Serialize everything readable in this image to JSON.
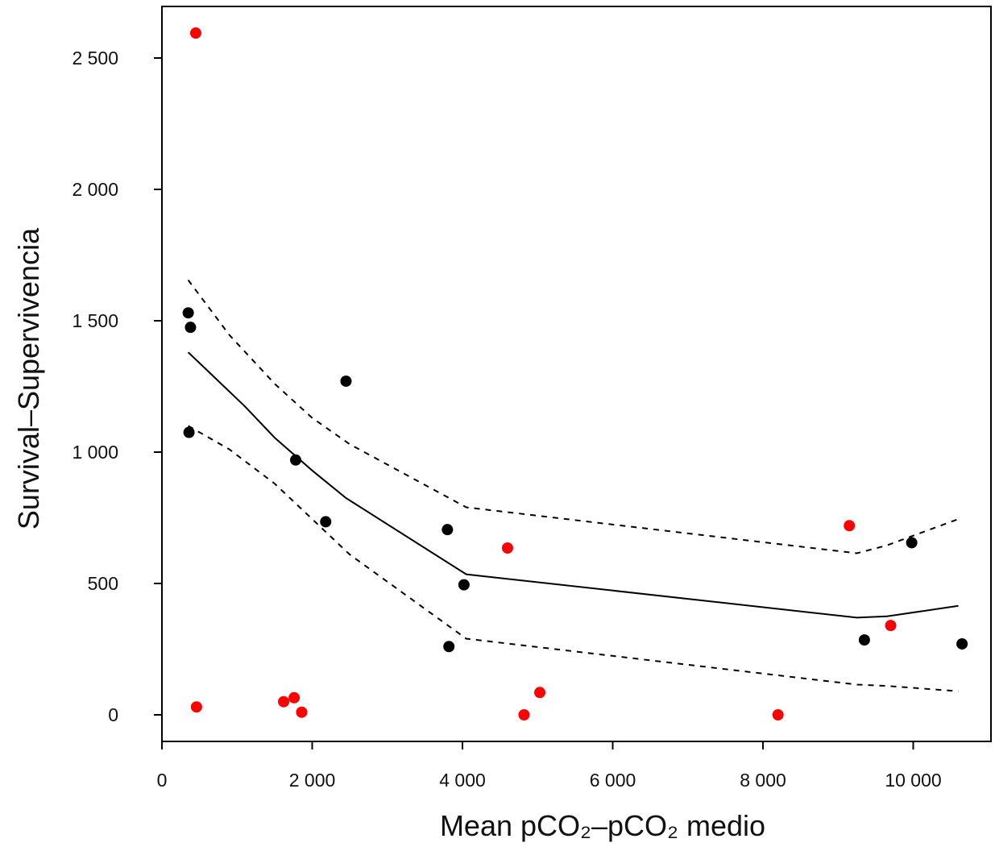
{
  "chart_data": {
    "type": "scatter",
    "title": "",
    "xlabel": "Mean pCO₂–pCO₂ medio",
    "ylabel": "Survival–Supervivencia",
    "xlim": [
      0,
      11000
    ],
    "ylim": [
      -110,
      2700
    ],
    "x_ticks": [
      0,
      2000,
      4000,
      6000,
      8000,
      10000
    ],
    "x_tick_labels": [
      "0",
      "2 000",
      "4 000",
      "6 000",
      "8 000",
      "10 000"
    ],
    "y_ticks": [
      0,
      500,
      1000,
      1500,
      2000,
      2500
    ],
    "y_tick_labels": [
      "0",
      "500",
      "1 000",
      "1 500",
      "2 000",
      "2 500"
    ],
    "grid": false,
    "legend": "none",
    "colors": {
      "black_points": "#000000",
      "red_points": "#ff0000",
      "lines": "#000000"
    },
    "series": [
      {
        "color": "#000000",
        "points": [
          {
            "x": 350,
            "y": 1530
          },
          {
            "x": 380,
            "y": 1475
          },
          {
            "x": 360,
            "y": 1075
          },
          {
            "x": 2450,
            "y": 1270
          },
          {
            "x": 1780,
            "y": 970
          },
          {
            "x": 2180,
            "y": 735
          },
          {
            "x": 3800,
            "y": 705
          },
          {
            "x": 4020,
            "y": 495
          },
          {
            "x": 3820,
            "y": 260
          },
          {
            "x": 9350,
            "y": 285
          },
          {
            "x": 9980,
            "y": 655
          },
          {
            "x": 10650,
            "y": 270
          }
        ]
      },
      {
        "color": "#ff0000",
        "points": [
          {
            "x": 450,
            "y": 2595
          },
          {
            "x": 460,
            "y": 30
          },
          {
            "x": 1620,
            "y": 50
          },
          {
            "x": 1760,
            "y": 65
          },
          {
            "x": 1860,
            "y": 10
          },
          {
            "x": 4600,
            "y": 635
          },
          {
            "x": 4820,
            "y": 0
          },
          {
            "x": 5030,
            "y": 85
          },
          {
            "x": 8200,
            "y": 0
          },
          {
            "x": 9150,
            "y": 720
          },
          {
            "x": 9700,
            "y": 340
          }
        ]
      }
    ],
    "lines": [
      {
        "style": "solid",
        "x": [
          350,
          1100,
          1500,
          2000,
          2450,
          4050,
          9250,
          9650,
          10600
        ],
        "y": [
          1380,
          1175,
          1055,
          930,
          825,
          535,
          370,
          375,
          415
        ]
      },
      {
        "style": "dashed",
        "x": [
          350,
          900,
          1500,
          2000,
          2500,
          4050,
          9250,
          9650,
          10600
        ],
        "y": [
          1655,
          1445,
          1260,
          1130,
          1030,
          790,
          615,
          645,
          745
        ]
      },
      {
        "style": "dashed",
        "x": [
          350,
          900,
          1500,
          2000,
          2500,
          4050,
          9250,
          9650,
          10600
        ],
        "y": [
          1100,
          1010,
          880,
          745,
          610,
          290,
          115,
          110,
          90
        ]
      }
    ]
  }
}
